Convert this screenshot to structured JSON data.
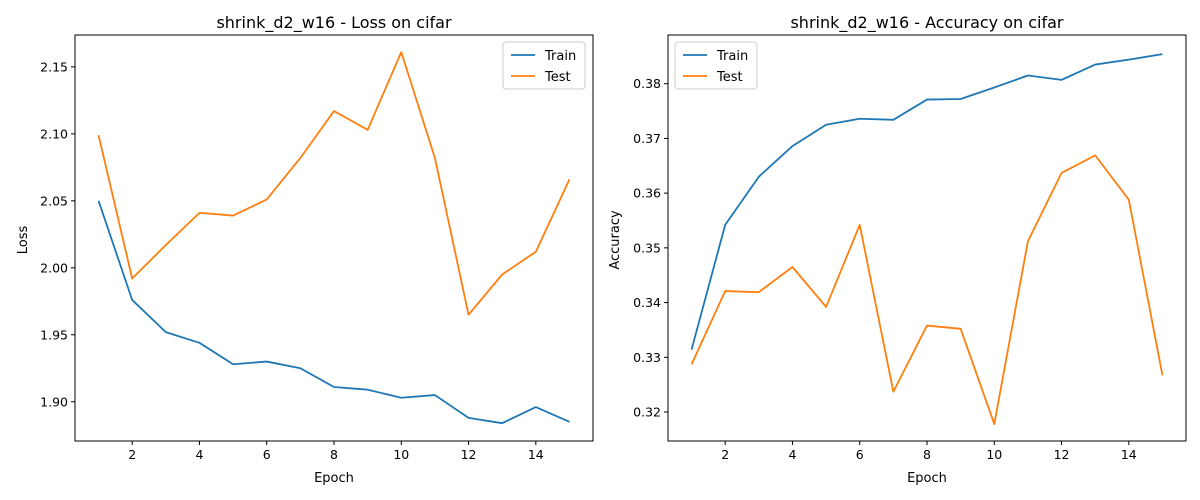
{
  "colors": {
    "train": "#1f77b4",
    "test": "#ff7f0e",
    "axis": "#000000",
    "legend_border": "#cccccc"
  },
  "chart_data": [
    {
      "type": "line",
      "title": "shrink_d2_w16 - Loss on cifar",
      "xlabel": "Epoch",
      "ylabel": "Loss",
      "x": [
        1,
        2,
        3,
        4,
        5,
        6,
        7,
        8,
        9,
        10,
        11,
        12,
        13,
        14,
        15
      ],
      "xticks": [
        2,
        4,
        6,
        8,
        10,
        12,
        14
      ],
      "xtick_labels": [
        "2",
        "4",
        "6",
        "8",
        "10",
        "12",
        "14"
      ],
      "yticks": [
        1.9,
        1.95,
        2.0,
        2.05,
        2.1,
        2.15
      ],
      "ytick_labels": [
        "1.90",
        "1.95",
        "2.00",
        "2.05",
        "2.10",
        "2.15"
      ],
      "xlim": [
        0.3,
        15.7
      ],
      "ylim": [
        1.8707,
        2.1738
      ],
      "grid": false,
      "legend_position": "upper right",
      "series": [
        {
          "name": "Train",
          "values": [
            2.05,
            1.976,
            1.952,
            1.944,
            1.928,
            1.93,
            1.925,
            1.911,
            1.909,
            1.903,
            1.905,
            1.888,
            1.884,
            1.896,
            1.885
          ]
        },
        {
          "name": "Test",
          "values": [
            2.099,
            1.992,
            2.017,
            2.041,
            2.039,
            2.051,
            2.082,
            2.117,
            2.103,
            2.161,
            2.082,
            1.965,
            1.995,
            2.012,
            2.066
          ]
        }
      ]
    },
    {
      "type": "line",
      "title": "shrink_d2_w16 - Accuracy on cifar",
      "xlabel": "Epoch",
      "ylabel": "Accuracy",
      "x": [
        1,
        2,
        3,
        4,
        5,
        6,
        7,
        8,
        9,
        10,
        11,
        12,
        13,
        14,
        15
      ],
      "xticks": [
        2,
        4,
        6,
        8,
        10,
        12,
        14
      ],
      "xtick_labels": [
        "2",
        "4",
        "6",
        "8",
        "10",
        "12",
        "14"
      ],
      "yticks": [
        0.32,
        0.33,
        0.34,
        0.35,
        0.36,
        0.37,
        0.38
      ],
      "ytick_labels": [
        "0.32",
        "0.33",
        "0.34",
        "0.35",
        "0.36",
        "0.37",
        "0.38"
      ],
      "xlim": [
        0.3,
        15.7
      ],
      "ylim": [
        0.3147,
        0.3889
      ],
      "grid": false,
      "legend_position": "upper left",
      "series": [
        {
          "name": "Train",
          "values": [
            0.3314,
            0.3542,
            0.363,
            0.3686,
            0.3725,
            0.3736,
            0.3734,
            0.3771,
            0.3772,
            0.3793,
            0.3815,
            0.3807,
            0.3835,
            0.3844,
            0.3854
          ]
        },
        {
          "name": "Test",
          "values": [
            0.3287,
            0.3421,
            0.3419,
            0.3465,
            0.3392,
            0.3542,
            0.3237,
            0.3358,
            0.3352,
            0.3178,
            0.3512,
            0.3637,
            0.3669,
            0.3588,
            0.3267
          ]
        }
      ]
    }
  ]
}
